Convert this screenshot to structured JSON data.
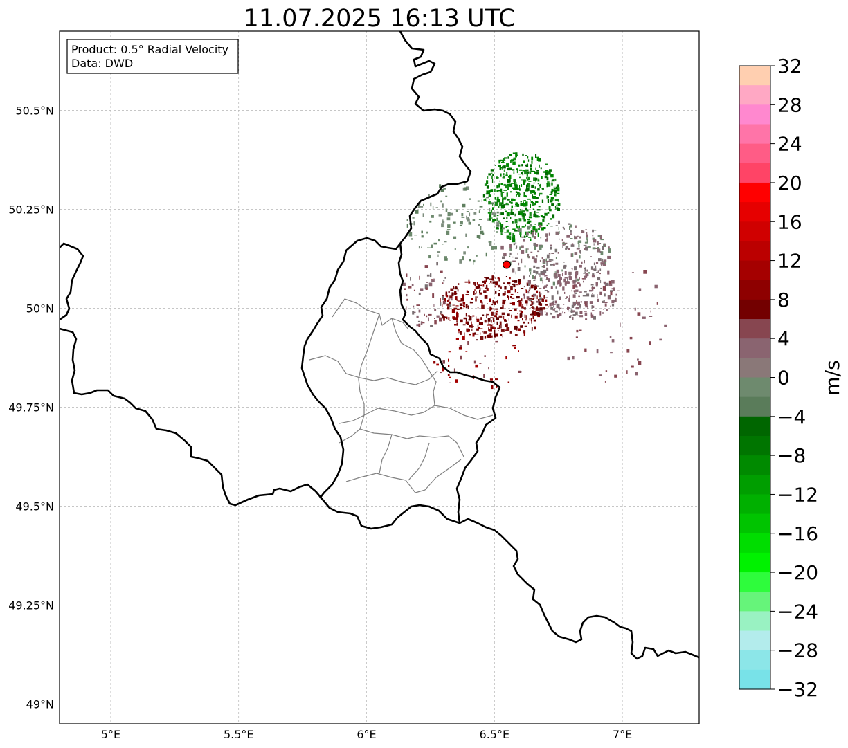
{
  "title": "11.07.2025 16:13 UTC",
  "info_box": {
    "product": "Product: 0.5° Radial Velocity",
    "data": "Data: DWD"
  },
  "map": {
    "extent": {
      "lon": [
        4.8,
        7.3
      ],
      "lat": [
        48.95,
        50.7
      ]
    },
    "lon_ticks": [
      {
        "value": 5.0,
        "label": "5°E"
      },
      {
        "value": 5.5,
        "label": "5.5°E"
      },
      {
        "value": 6.0,
        "label": "6°E"
      },
      {
        "value": 6.5,
        "label": "6.5°E"
      },
      {
        "value": 7.0,
        "label": "7°E"
      }
    ],
    "lat_ticks": [
      {
        "value": 50.5,
        "label": "50.5°N"
      },
      {
        "value": 50.25,
        "label": "50.25°N"
      },
      {
        "value": 50.0,
        "label": "50°N"
      },
      {
        "value": 49.75,
        "label": "49.75°N"
      },
      {
        "value": 49.5,
        "label": "49.5°N"
      },
      {
        "value": 49.25,
        "label": "49.25°N"
      },
      {
        "value": 49.0,
        "label": "49°N"
      }
    ],
    "radar_site": {
      "lon": 6.548,
      "lat": 50.11,
      "color": "#ff0000"
    },
    "grid": true
  },
  "colorbar": {
    "label": "m/s",
    "min": -32,
    "max": 32,
    "tick_labels": [
      "32",
      "28",
      "24",
      "20",
      "16",
      "12",
      "8",
      "4",
      "0",
      "−4",
      "−8",
      "−12",
      "−16",
      "−20",
      "−24",
      "−28",
      "−32"
    ],
    "colors_top_to_bottom": [
      "#ffcfb0",
      "#ffa8c4",
      "#ff88cf",
      "#ff74a8",
      "#ff5c86",
      "#ff4466",
      "#ff0000",
      "#e60000",
      "#d00000",
      "#bb0000",
      "#a50000",
      "#8e0000",
      "#730000",
      "#874650",
      "#8a6470",
      "#8a7878",
      "#6e8a6e",
      "#5a7c5a",
      "#006600",
      "#007500",
      "#008a00",
      "#009e00",
      "#00b000",
      "#00c400",
      "#00dd00",
      "#00f200",
      "#2efc3c",
      "#66f47a",
      "#99f2c2",
      "#b3ecec",
      "#8ce6e8",
      "#78e2e8"
    ]
  }
}
